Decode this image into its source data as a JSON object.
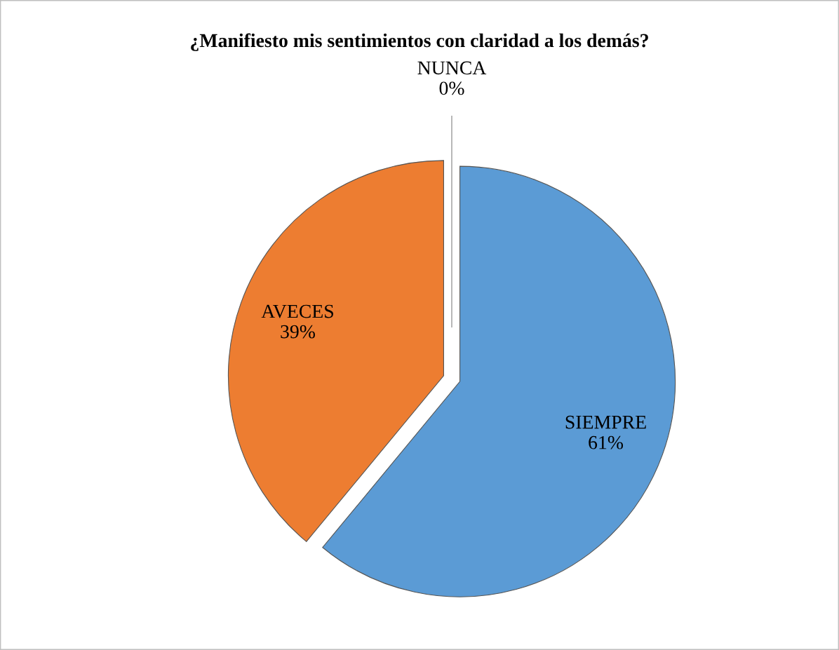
{
  "chart_data": {
    "type": "pie",
    "title": "¿Manifiesto mis sentimientos con claridad a los demás?",
    "categories": [
      "SIEMPRE",
      "AVECES",
      "NUNCA"
    ],
    "values": [
      61,
      39,
      0
    ],
    "colors": [
      "#5b9bd5",
      "#ed7d31",
      "#a5a5a5"
    ],
    "value_labels": [
      "61%",
      "39%",
      "0%"
    ]
  }
}
